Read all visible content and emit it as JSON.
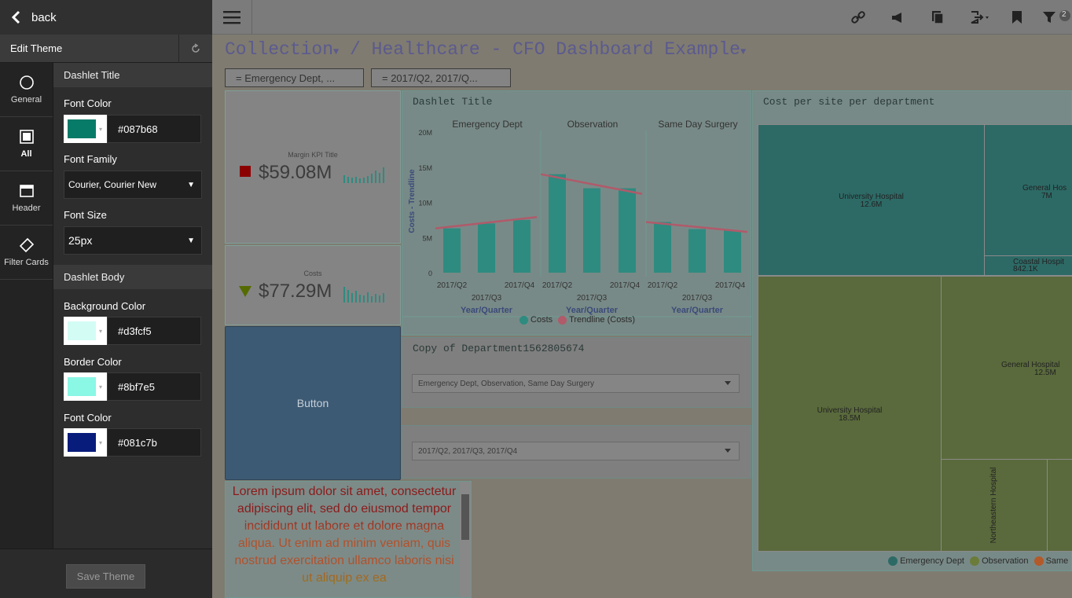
{
  "back_label": "back",
  "edit_theme": "Edit Theme",
  "nav": [
    {
      "label": "General",
      "icon": "circle-icon"
    },
    {
      "label": "All",
      "icon": "square-icon"
    },
    {
      "label": "Header",
      "icon": "window-icon"
    },
    {
      "label": "Filter Cards",
      "icon": "tag-icon"
    }
  ],
  "title_section": {
    "header": "Dashlet Title",
    "font_color_label": "Font Color",
    "font_color": "#087b68",
    "font_family_label": "Font Family",
    "font_family": "Courier, Courier New",
    "font_size_label": "Font Size",
    "font_size": "25px"
  },
  "body_section": {
    "header": "Dashlet Body",
    "bg_label": "Background Color",
    "bg_color": "#d3fcf5",
    "border_label": "Border Color",
    "border_color": "#8bf7e5",
    "font_label": "Font Color",
    "font_color": "#081c7b"
  },
  "save_label": "Save Theme",
  "toolbar": {
    "filter_count": "2"
  },
  "breadcrumb": {
    "collection": "Collection",
    "sep": "/",
    "dashboard": "Healthcare - CFO Dashboard Example"
  },
  "filters": [
    "= Emergency Dept, ...",
    "= 2017/Q2, 2017/Q..."
  ],
  "kpi1": {
    "title": "Margin KPI Title",
    "value": "$59.08M"
  },
  "kpi2": {
    "title": "Costs",
    "value": "$77.29M"
  },
  "button_label": "Button",
  "lorem_text": "Lorem ipsum dolor sit amet, consectetur adipiscing elit, sed do eiusmod tempor incididunt ut labore et dolore magna aliqua. Ut enim ad minim veniam, quis nostrud exercitation ullamco laboris nisi ut aliquip ex ea",
  "chart_data": {
    "type": "bar",
    "title": "Dashlet Title",
    "panels": [
      {
        "name": "Emergency Dept",
        "values": [
          6.3,
          7,
          7.5
        ],
        "trend": [
          6.3,
          7.9
        ]
      },
      {
        "name": "Observation",
        "values": [
          14,
          12,
          12
        ],
        "trend": [
          14,
          11.2
        ]
      },
      {
        "name": "Same Day Surgery",
        "values": [
          7.2,
          6.2,
          6
        ],
        "trend": [
          7.2,
          5.8
        ]
      }
    ],
    "categories": [
      "2017/Q2",
      "2017/Q3",
      "2017/Q4"
    ],
    "xlabel": "Year/Quarter",
    "ylabel": "Costs - Trendline",
    "yticks": [
      "20M",
      "15M",
      "10M",
      "5M",
      "0"
    ],
    "ylim": [
      0,
      20
    ],
    "legend": [
      "Costs",
      "Trendline (Costs)"
    ],
    "colors": {
      "bar": "#2e8b80",
      "trend": "#b05a6a"
    }
  },
  "dept_card": {
    "title": "Copy of Department1562805674",
    "value": "Emergency Dept, Observation, Same Day Surgery"
  },
  "quarter_card": {
    "value": "2017/Q2, 2017/Q3, 2017/Q4"
  },
  "treemap": {
    "title": "Cost per site per department",
    "cells": [
      {
        "label": "University Hospital",
        "value": "12.6M"
      },
      {
        "label": "General Hos",
        "value": "7M"
      },
      {
        "label": "Coastal Hospit",
        "value": "842.1K"
      },
      {
        "label": "University Hospital",
        "value": "18.5M"
      },
      {
        "label": "General Hospital",
        "value": "12.5M"
      },
      {
        "label": "Northeastern Hospital",
        "value": ""
      }
    ],
    "legend": [
      "Emergency Dept",
      "Observation",
      "Same"
    ]
  }
}
